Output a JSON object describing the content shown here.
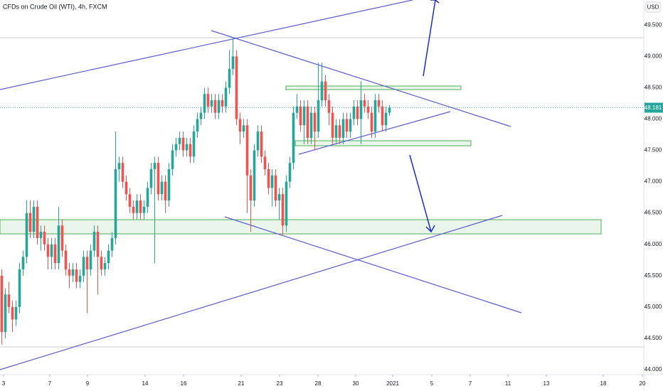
{
  "chart_data": {
    "type": "candlestick",
    "title": "CFDs on Crude Oil (WTI), 4h, FXCM",
    "currency": "USD",
    "open": [
      45.5,
      44.6,
      45.2,
      45.0,
      44.8,
      45.0,
      45.6,
      45.8,
      46.5,
      46.2,
      46.6,
      46.1,
      46.2,
      46.0,
      45.8,
      46.0,
      45.7,
      46.3,
      45.9,
      45.6,
      45.5,
      45.6,
      45.4,
      45.5,
      45.8,
      45.6,
      45.9,
      46.2,
      45.8,
      45.6,
      45.7,
      45.9,
      46.1,
      47.2,
      47.3,
      47.0,
      46.8,
      46.6,
      46.5,
      46.7,
      46.5,
      46.6,
      46.9,
      47.2,
      47.3,
      46.8,
      47.0,
      46.7,
      47.2,
      47.5,
      47.6,
      47.7,
      47.5,
      47.6,
      47.4,
      47.8,
      48.0,
      48.1,
      48.4,
      48.2,
      48.3,
      48.1,
      48.3,
      48.2,
      48.5,
      48.8,
      49.0,
      48.0,
      47.8,
      47.9,
      47.1,
      46.7,
      47.5,
      47.8,
      47.4,
      47.2,
      46.9,
      47.1,
      46.7,
      46.8,
      46.3,
      47.0,
      47.3,
      48.1,
      48.2,
      47.9,
      48.2,
      47.7,
      48.1,
      47.8,
      48.3,
      48.6,
      48.3,
      48.1,
      47.7,
      47.9,
      47.7,
      48.0,
      47.8,
      48.0,
      48.2,
      48.0,
      48.3,
      48.2,
      48.1,
      47.8,
      48.3,
      48.2,
      47.9,
      48.1
    ],
    "high": [
      45.6,
      45.3,
      45.4,
      45.1,
      45.1,
      45.7,
      45.9,
      46.7,
      46.7,
      46.7,
      46.7,
      46.3,
      46.3,
      46.1,
      46.1,
      46.1,
      46.6,
      46.4,
      46.0,
      45.7,
      45.7,
      45.7,
      45.6,
      45.9,
      45.9,
      46.0,
      46.3,
      46.3,
      45.9,
      45.8,
      46.0,
      46.2,
      47.8,
      47.4,
      47.4,
      47.1,
      46.9,
      46.7,
      46.8,
      46.8,
      46.7,
      47.0,
      47.3,
      47.4,
      47.4,
      47.1,
      47.1,
      47.3,
      47.6,
      47.7,
      47.8,
      47.8,
      47.7,
      47.7,
      47.9,
      48.1,
      48.2,
      48.5,
      48.5,
      48.4,
      48.4,
      48.4,
      48.4,
      48.6,
      49.1,
      49.3,
      49.1,
      48.1,
      48.0,
      48.0,
      47.2,
      47.6,
      47.9,
      47.9,
      47.5,
      47.3,
      47.2,
      47.2,
      46.9,
      46.9,
      47.1,
      47.4,
      48.2,
      48.4,
      48.3,
      48.3,
      48.3,
      48.2,
      48.2,
      48.9,
      48.9,
      48.7,
      48.4,
      48.2,
      48.0,
      48.0,
      48.1,
      48.1,
      48.1,
      48.3,
      48.3,
      48.6,
      48.4,
      48.3,
      48.2,
      48.4,
      48.4,
      48.3,
      48.2,
      48.22
    ],
    "low": [
      44.4,
      44.5,
      44.9,
      44.6,
      44.7,
      44.9,
      45.5,
      45.7,
      46.1,
      46.1,
      46.0,
      45.9,
      45.9,
      45.6,
      45.6,
      45.6,
      45.6,
      45.8,
      45.5,
      45.3,
      45.4,
      45.3,
      45.3,
      45.4,
      44.9,
      45.5,
      45.8,
      45.2,
      45.5,
      45.5,
      45.6,
      45.8,
      46.0,
      47.0,
      46.9,
      46.7,
      46.5,
      46.4,
      46.4,
      46.4,
      46.4,
      46.5,
      46.8,
      45.7,
      46.7,
      46.7,
      46.5,
      46.6,
      47.1,
      47.4,
      47.5,
      47.4,
      47.4,
      47.3,
      47.3,
      47.7,
      47.9,
      48.0,
      48.1,
      48.1,
      48.0,
      48.0,
      48.1,
      48.1,
      48.4,
      48.7,
      47.9,
      47.6,
      47.7,
      46.5,
      46.2,
      46.6,
      47.4,
      47.3,
      47.1,
      46.8,
      46.6,
      46.6,
      46.4,
      46.15,
      46.2,
      46.9,
      47.2,
      48.0,
      47.8,
      47.6,
      47.6,
      47.6,
      47.5,
      47.7,
      48.2,
      48.2,
      47.9,
      47.6,
      47.6,
      47.6,
      47.6,
      47.7,
      47.7,
      47.9,
      47.9,
      47.6,
      48.1,
      48.0,
      47.7,
      47.7,
      48.1,
      47.8,
      47.8,
      48.05
    ],
    "close": [
      44.6,
      45.2,
      45.0,
      44.8,
      45.0,
      45.6,
      45.8,
      46.5,
      46.2,
      46.6,
      46.1,
      46.2,
      46.0,
      45.8,
      46.0,
      45.7,
      46.3,
      45.9,
      45.6,
      45.5,
      45.6,
      45.4,
      45.5,
      45.8,
      45.6,
      45.9,
      46.2,
      45.8,
      45.6,
      45.7,
      45.9,
      46.1,
      47.2,
      47.3,
      47.0,
      46.8,
      46.6,
      46.5,
      46.7,
      46.5,
      46.6,
      46.9,
      47.2,
      47.3,
      46.8,
      47.0,
      46.7,
      47.2,
      47.5,
      47.6,
      47.7,
      47.5,
      47.6,
      47.4,
      47.8,
      48.0,
      48.1,
      48.4,
      48.2,
      48.3,
      48.1,
      48.3,
      48.2,
      48.5,
      48.8,
      49.0,
      48.0,
      47.8,
      47.9,
      47.1,
      46.7,
      47.5,
      47.8,
      47.4,
      47.2,
      46.9,
      47.1,
      46.7,
      46.8,
      46.3,
      47.0,
      47.3,
      48.1,
      48.2,
      47.9,
      48.2,
      47.7,
      48.1,
      47.8,
      48.3,
      48.6,
      48.3,
      48.1,
      47.7,
      47.9,
      47.7,
      48.0,
      47.8,
      48.0,
      48.2,
      48.0,
      48.3,
      48.2,
      48.1,
      47.8,
      48.3,
      48.2,
      47.9,
      48.1,
      48.181
    ],
    "up_color": "#26a69a",
    "down_color": "#ef5350",
    "last_price": 48.181,
    "xlim": [
      -0.5,
      180.5
    ],
    "xticks": [
      {
        "value": 0.5,
        "label": "3"
      },
      {
        "value": 13.5,
        "label": "7"
      },
      {
        "value": 24.1,
        "label": "9"
      },
      {
        "value": 40.3,
        "label": "14"
      },
      {
        "value": 51.1,
        "label": "16"
      },
      {
        "value": 67.3,
        "label": "21"
      },
      {
        "value": 78.1,
        "label": "23"
      },
      {
        "value": 88.9,
        "label": "28"
      },
      {
        "value": 99.5,
        "label": "30"
      },
      {
        "value": 109.9,
        "label": "2021"
      },
      {
        "value": 120.9,
        "label": "5"
      },
      {
        "value": 131.7,
        "label": "7"
      },
      {
        "value": 142.3,
        "label": "11"
      },
      {
        "value": 153.1,
        "label": "13"
      },
      {
        "value": 169.1,
        "label": "18"
      },
      {
        "value": 180.1,
        "label": "20"
      }
    ],
    "ylim": [
      43.92,
      49.9
    ],
    "yticks": [
      {
        "value": 44.0,
        "label": "44.000"
      },
      {
        "value": 44.5,
        "label": "44.500"
      },
      {
        "value": 45.0,
        "label": "45.000"
      },
      {
        "value": 45.5,
        "label": "45.500"
      },
      {
        "value": 46.0,
        "label": "46.000"
      },
      {
        "value": 46.5,
        "label": "46.500"
      },
      {
        "value": 47.0,
        "label": "47.000"
      },
      {
        "value": 47.5,
        "label": "47.500"
      },
      {
        "value": 48.0,
        "label": "48.000"
      },
      {
        "value": 48.5,
        "label": "48.500"
      },
      {
        "value": 49.0,
        "label": "49.000"
      },
      {
        "value": 49.5,
        "label": "49.500"
      }
    ],
    "grid": false
  }
}
